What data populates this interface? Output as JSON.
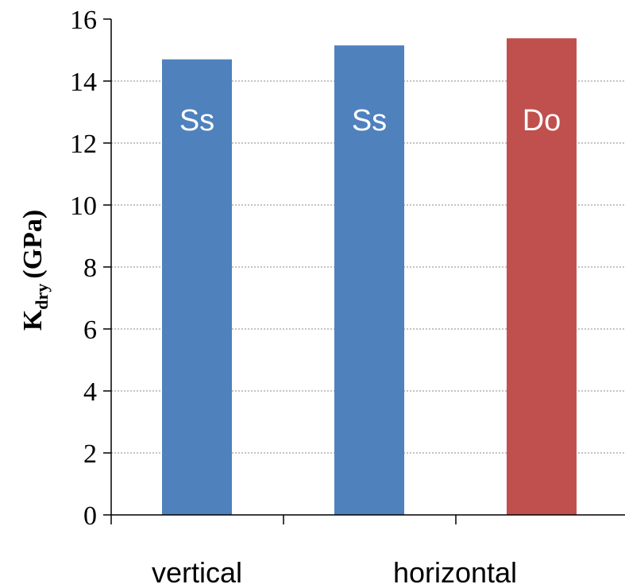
{
  "chart_data": {
    "type": "bar",
    "title": "",
    "xlabel": "",
    "ylabel": {
      "main": "K",
      "subscript": "dry",
      "unit": "(GPa)"
    },
    "ylim": [
      0,
      16
    ],
    "yticks": [
      "0",
      "2",
      "4",
      "6",
      "8",
      "10",
      "12",
      "14",
      "16"
    ],
    "grid": true,
    "bars": [
      {
        "label": "Ss",
        "value": 14.7,
        "color": "#4f81bd"
      },
      {
        "label": "Ss",
        "value": 15.15,
        "color": "#4f81bd"
      },
      {
        "label": "Do",
        "value": 15.38,
        "color": "#c0504d"
      }
    ],
    "category_labels": [
      "vertical",
      "horizontal"
    ]
  }
}
